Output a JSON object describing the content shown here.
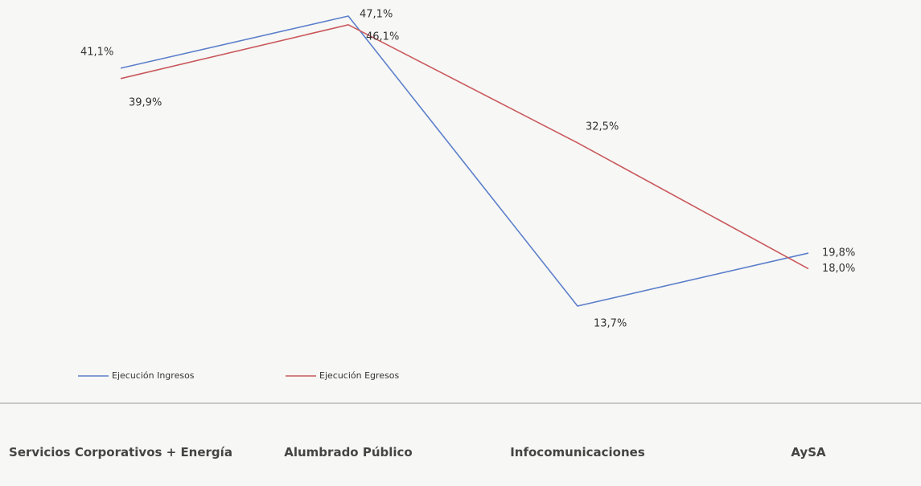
{
  "chart_data": {
    "type": "line",
    "categories": [
      "Servicios Corporativos + Energía",
      "Alumbrado Público",
      "Infocomunicaciones",
      "AySA"
    ],
    "series": [
      {
        "name": "Ejecución Ingresos",
        "color": "#5b7fcb",
        "values": [
          41.1,
          47.1,
          13.7,
          19.8
        ],
        "value_labels": [
          "41,1%",
          "47,1%",
          "13,7%",
          "19,8%"
        ]
      },
      {
        "name": "Ejecución Egresos",
        "color": "#c9585c",
        "values": [
          39.9,
          46.1,
          32.5,
          18.0
        ],
        "value_labels": [
          "39,9%",
          "46,1%",
          "32,5%",
          "18,0%"
        ]
      }
    ],
    "legend": "bottom-left"
  }
}
